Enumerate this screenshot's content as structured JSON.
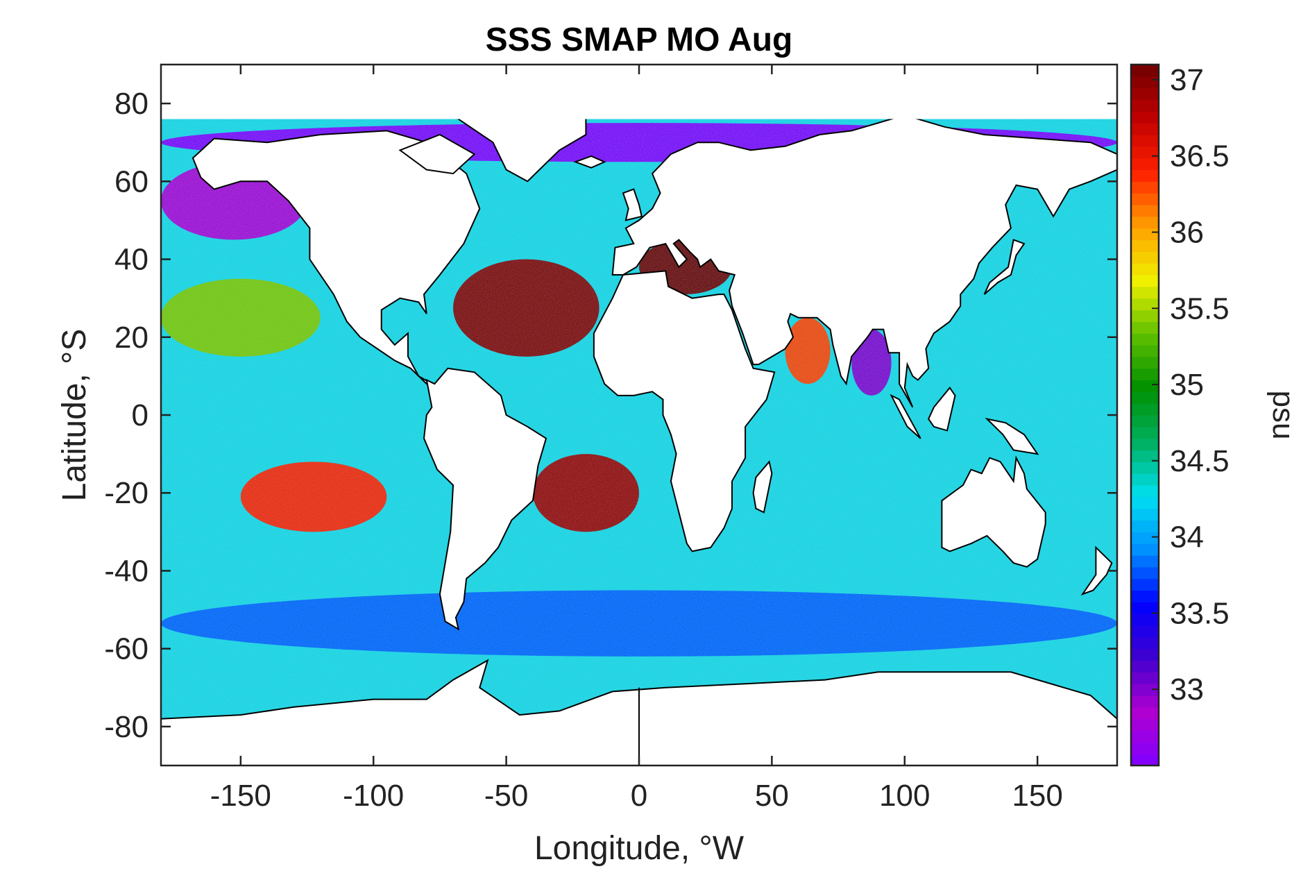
{
  "chart_data": {
    "type": "heatmap",
    "title": "SSS SMAP MO Aug",
    "xlabel": "Longitude, °W",
    "ylabel": "Latitude, °S",
    "xlim": [
      -180,
      180
    ],
    "ylim": [
      -90,
      90
    ],
    "x_ticks": [
      -150,
      -100,
      -50,
      0,
      50,
      100,
      150
    ],
    "y_ticks": [
      80,
      60,
      40,
      20,
      0,
      -20,
      -40,
      -60,
      -80
    ],
    "colorbar": {
      "label": "psu",
      "range": [
        32.5,
        37.1
      ],
      "ticks": [
        37,
        36.5,
        36,
        35.5,
        35,
        34.5,
        34,
        33.5,
        33
      ],
      "colors": [
        "#8000ff",
        "#b000d0",
        "#4000d0",
        "#0000ff",
        "#0090ff",
        "#00e0f0",
        "#00b060",
        "#009000",
        "#60c000",
        "#f0f000",
        "#ffa000",
        "#ff2000",
        "#c00000",
        "#700000"
      ]
    },
    "salinity_regions": [
      {
        "region": "Subtropical North Atlantic",
        "lon_range": [
          -70,
          -15
        ],
        "lat_range": [
          15,
          40
        ],
        "approx_psu": 37.0
      },
      {
        "region": "Mediterranean Sea",
        "lon_range": [
          0,
          35
        ],
        "lat_range": [
          31,
          45
        ],
        "approx_psu": 37.1
      },
      {
        "region": "Subtropical South Atlantic",
        "lon_range": [
          -40,
          0
        ],
        "lat_range": [
          -30,
          -10
        ],
        "approx_psu": 36.9
      },
      {
        "region": "Subtropical South Pacific",
        "lon_range": [
          -150,
          -95
        ],
        "lat_range": [
          -30,
          -12
        ],
        "approx_psu": 36.4
      },
      {
        "region": "Arabian Sea",
        "lon_range": [
          55,
          72
        ],
        "lat_range": [
          8,
          25
        ],
        "approx_psu": 36.3
      },
      {
        "region": "Subtropical North Pacific",
        "lon_range": [
          -180,
          -120
        ],
        "lat_range": [
          15,
          35
        ],
        "approx_psu": 35.4
      },
      {
        "region": "Southern Ocean",
        "lon_range": [
          -180,
          180
        ],
        "lat_range": [
          -62,
          -45
        ],
        "approx_psu": 33.8
      },
      {
        "region": "Bay of Bengal",
        "lon_range": [
          80,
          95
        ],
        "lat_range": [
          5,
          22
        ],
        "approx_psu": 33.0
      },
      {
        "region": "North Pacific high latitudes",
        "lon_range": [
          -180,
          -125
        ],
        "lat_range": [
          45,
          65
        ],
        "approx_psu": 32.8
      },
      {
        "region": "Arctic shelf seas",
        "lon_range": [
          -180,
          180
        ],
        "lat_range": [
          65,
          75
        ],
        "approx_psu": 32.5
      }
    ]
  }
}
